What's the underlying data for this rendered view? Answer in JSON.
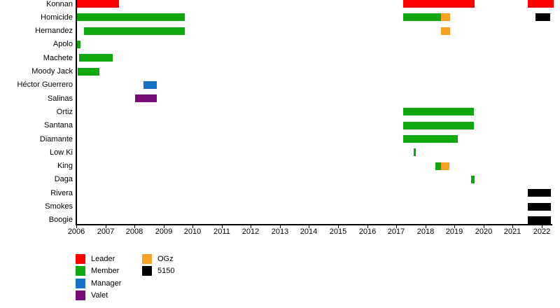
{
  "chart_data": {
    "type": "gantt-timeline",
    "title": "",
    "x_axis": {
      "label": "",
      "start": 2006,
      "end": 2022.45,
      "ticks": [
        2006,
        2007,
        2008,
        2009,
        2010,
        2011,
        2012,
        2013,
        2014,
        2015,
        2016,
        2017,
        2018,
        2019,
        2020,
        2021,
        2022
      ]
    },
    "grid": "off",
    "legend_position": "bottom-left",
    "legend": [
      {
        "label": "Leader",
        "color": "#fe0000"
      },
      {
        "label": "Member",
        "color": "#0fa90f"
      },
      {
        "label": "Manager",
        "color": "#1673c8"
      },
      {
        "label": "Valet",
        "color": "#770c77"
      },
      {
        "label": "OGz",
        "color": "#f6a325"
      },
      {
        "label": "5150",
        "color": "#000000"
      }
    ],
    "rows": [
      {
        "label": "Konnan",
        "bars": [
          {
            "start": 2006.02,
            "end": 2007.47,
            "role": "Leader"
          },
          {
            "start": 2017.23,
            "end": 2019.69,
            "role": "Leader"
          },
          {
            "start": 2021.52,
            "end": 2022.41,
            "role": "Leader"
          }
        ]
      },
      {
        "label": "Homicide",
        "bars": [
          {
            "start": 2006.02,
            "end": 2009.73,
            "role": "Member"
          },
          {
            "start": 2017.23,
            "end": 2018.53,
            "role": "Member"
          },
          {
            "start": 2018.53,
            "end": 2018.84,
            "role": "OGz"
          },
          {
            "start": 2021.78,
            "end": 2022.29,
            "role": "5150"
          }
        ]
      },
      {
        "label": "Hernandez",
        "bars": [
          {
            "start": 2006.27,
            "end": 2009.73,
            "role": "Member"
          },
          {
            "start": 2018.53,
            "end": 2018.84,
            "role": "OGz"
          }
        ]
      },
      {
        "label": "Apolo",
        "bars": [
          {
            "start": 2006.02,
            "end": 2006.15,
            "role": "Member"
          }
        ]
      },
      {
        "label": "Machete",
        "bars": [
          {
            "start": 2006.1,
            "end": 2007.25,
            "role": "Member"
          }
        ]
      },
      {
        "label": "Moody Jack",
        "bars": [
          {
            "start": 2006.05,
            "end": 2006.8,
            "role": "Member"
          }
        ]
      },
      {
        "label": "Héctor Guerrero",
        "bars": [
          {
            "start": 2008.31,
            "end": 2008.77,
            "role": "Manager"
          }
        ]
      },
      {
        "label": "Salinas",
        "bars": [
          {
            "start": 2008.02,
            "end": 2008.77,
            "role": "Valet"
          }
        ]
      },
      {
        "label": "Ortiz",
        "bars": [
          {
            "start": 2017.25,
            "end": 2019.69,
            "role": "Member"
          }
        ]
      },
      {
        "label": "Santana",
        "bars": [
          {
            "start": 2017.25,
            "end": 2019.69,
            "role": "Member"
          }
        ]
      },
      {
        "label": "Diamante",
        "bars": [
          {
            "start": 2017.25,
            "end": 2019.13,
            "role": "Member"
          }
        ]
      },
      {
        "label": "Low Ki",
        "bars": [
          {
            "start": 2017.61,
            "end": 2017.69,
            "role": "Member"
          }
        ]
      },
      {
        "label": "King",
        "bars": [
          {
            "start": 2018.34,
            "end": 2018.53,
            "role": "Member"
          },
          {
            "start": 2018.53,
            "end": 2018.82,
            "role": "OGz"
          }
        ]
      },
      {
        "label": "Daga",
        "bars": [
          {
            "start": 2019.57,
            "end": 2019.68,
            "role": "Member"
          }
        ]
      },
      {
        "label": "Rivera",
        "bars": [
          {
            "start": 2021.52,
            "end": 2022.31,
            "role": "5150"
          }
        ]
      },
      {
        "label": "Smokes",
        "bars": [
          {
            "start": 2021.52,
            "end": 2022.31,
            "role": "5150"
          }
        ]
      },
      {
        "label": "Boogie",
        "bars": [
          {
            "start": 2021.52,
            "end": 2022.31,
            "role": "5150"
          }
        ]
      }
    ]
  }
}
